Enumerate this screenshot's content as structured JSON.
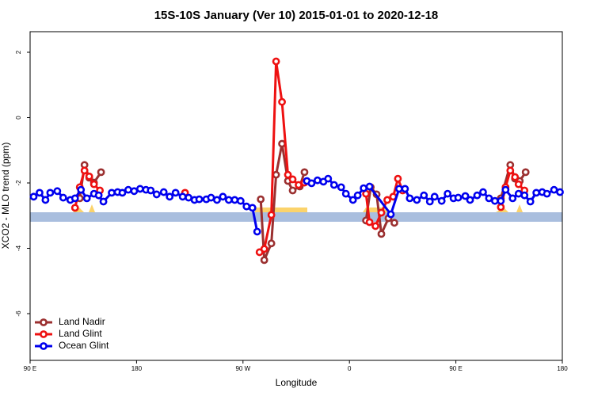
{
  "chart_data": {
    "type": "line",
    "title": "15S-10S January (Ver 10)   2015-01-01 to 2020-12-18",
    "xlabel": "Longitude",
    "ylabel": "XCO2 - MLO trend (ppm)",
    "xlim": [
      90,
      540
    ],
    "ylim": [
      -7.43,
      2.63
    ],
    "xticks": [
      {
        "value": 90,
        "label": "90 E"
      },
      180,
      {
        "value": 270,
        "label": "90 W"
      },
      {
        "value": 360,
        "label": "0"
      },
      {
        "value": 450,
        "label": "90 E"
      },
      {
        "value": 540,
        "label": "180"
      }
    ],
    "yticks": [
      2,
      0,
      -2,
      -4,
      -6
    ],
    "legend": "bottom-left",
    "series": [
      {
        "name": "Land Nadir",
        "color": "#9b3030",
        "x": [
          132,
          136,
          140,
          144,
          150,
          null,
          285,
          288,
          294,
          298,
          303,
          308,
          312,
          318,
          322,
          null,
          374,
          378,
          383,
          387,
          393,
          398,
          null,
          488,
          496,
          500,
          504,
          509
        ],
        "values": [
          -2.47,
          -1.45,
          -1.84,
          -1.99,
          -1.67,
          null,
          -2.5,
          -4.36,
          -3.85,
          -1.75,
          -0.8,
          -1.94,
          -2.23,
          -2.11,
          -1.67,
          null,
          -3.15,
          -2.13,
          -2.35,
          -3.56,
          -3.08,
          -3.22,
          null,
          -2.47,
          -1.45,
          -1.87,
          -1.94,
          -1.67
        ]
      },
      {
        "name": "Land Glint",
        "color": "#ee1111",
        "x": [
          128,
          132,
          136,
          140,
          144,
          149,
          null,
          221,
          null,
          284,
          288,
          294,
          298,
          303,
          308,
          312,
          317,
          322,
          null,
          374,
          377,
          382,
          387,
          392,
          397,
          401,
          405,
          null,
          488,
          492,
          496,
          500,
          503,
          508
        ],
        "values": [
          -2.76,
          -2.13,
          -1.62,
          -1.8,
          -2.04,
          -2.23,
          null,
          -2.3,
          null,
          -4.12,
          -4.02,
          -2.98,
          1.72,
          0.48,
          -1.75,
          -1.89,
          -2.06,
          -1.99,
          null,
          -2.33,
          -3.2,
          -3.32,
          -2.91,
          -2.52,
          -2.42,
          -1.87,
          -2.23,
          null,
          -2.74,
          -2.13,
          -1.62,
          -1.82,
          -2.04,
          -2.23
        ]
      },
      {
        "name": "Ocean Glint",
        "color": "#0000ee",
        "x": [
          93,
          98,
          103,
          107,
          113,
          118,
          124,
          128,
          133,
          138,
          144,
          148,
          152,
          159,
          164,
          168,
          173,
          178,
          183,
          188,
          192,
          197,
          203,
          208,
          213,
          219,
          224,
          229,
          233,
          239,
          243,
          248,
          253,
          258,
          263,
          268,
          273,
          278,
          282,
          null,
          324,
          328,
          333,
          338,
          342,
          347,
          353,
          357,
          363,
          367,
          372,
          377,
          395,
          402,
          407,
          411,
          417,
          423,
          428,
          432,
          438,
          443,
          448,
          452,
          458,
          462,
          468,
          473,
          478,
          483,
          488,
          492,
          498,
          503,
          508,
          513,
          518,
          523,
          527,
          533,
          538
        ],
        "values": [
          -2.42,
          -2.3,
          -2.52,
          -2.3,
          -2.25,
          -2.45,
          -2.52,
          -2.47,
          -2.21,
          -2.47,
          -2.33,
          -2.38,
          -2.57,
          -2.3,
          -2.28,
          -2.3,
          -2.21,
          -2.25,
          -2.18,
          -2.21,
          -2.23,
          -2.35,
          -2.28,
          -2.42,
          -2.3,
          -2.42,
          -2.45,
          -2.52,
          -2.5,
          -2.5,
          -2.45,
          -2.52,
          -2.42,
          -2.52,
          -2.52,
          -2.55,
          -2.72,
          -2.76,
          -3.49,
          null,
          -1.94,
          -2.01,
          -1.92,
          -1.96,
          -1.87,
          -2.06,
          -2.13,
          -2.33,
          -2.52,
          -2.38,
          -2.16,
          -2.11,
          -2.96,
          -2.18,
          -2.18,
          -2.47,
          -2.52,
          -2.38,
          -2.57,
          -2.42,
          -2.55,
          -2.33,
          -2.47,
          -2.45,
          -2.4,
          -2.52,
          -2.38,
          -2.28,
          -2.47,
          -2.55,
          -2.55,
          -2.21,
          -2.47,
          -2.33,
          -2.38,
          -2.57,
          -2.3,
          -2.28,
          -2.33,
          -2.21,
          -2.28
        ]
      }
    ]
  }
}
